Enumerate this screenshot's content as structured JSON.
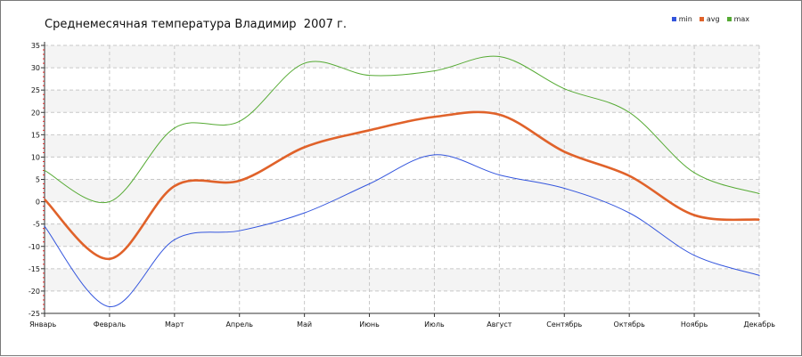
{
  "chart_data": {
    "type": "line",
    "title": "Среднемесячная температура Владимир  2007 г.",
    "categories": [
      "Январь",
      "Февраль",
      "Март",
      "Апрель",
      "Май",
      "Июнь",
      "Июль",
      "Август",
      "Сентябрь",
      "Октябрь",
      "Ноябрь",
      "Декабрь"
    ],
    "ylim": [
      -25,
      35
    ],
    "yticks": [
      35,
      30,
      25,
      20,
      15,
      10,
      5,
      0,
      -5,
      -10,
      -15,
      -20,
      -25
    ],
    "grid": true,
    "legend_position": "top-right",
    "series": [
      {
        "name": "min",
        "color": "#3355dd",
        "values": [
          -5.5,
          -23.5,
          -8.5,
          -6.5,
          -2.5,
          4,
          10.5,
          6,
          3,
          -2.5,
          -12,
          -16.5
        ]
      },
      {
        "name": "avg",
        "color": "#e0622a",
        "values": [
          0.5,
          -12.8,
          3.5,
          4.7,
          12.2,
          16,
          19,
          19.5,
          11.2,
          5.8,
          -3,
          -4
        ]
      },
      {
        "name": "max",
        "color": "#55aa33",
        "values": [
          7,
          0,
          16.5,
          18,
          31,
          28.3,
          29.3,
          32.5,
          25.3,
          20,
          6.5,
          1.8
        ]
      }
    ]
  }
}
